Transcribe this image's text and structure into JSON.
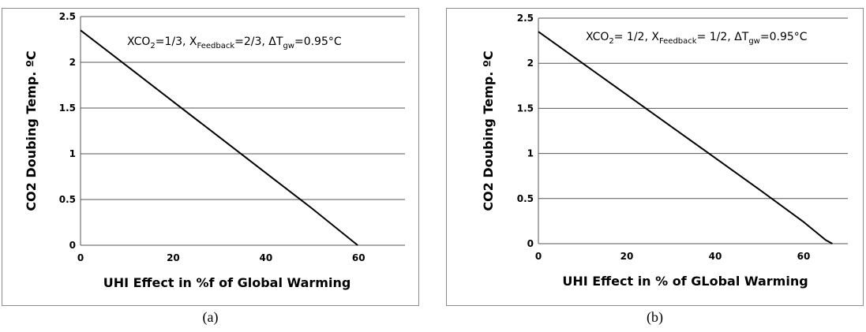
{
  "chart_data": [
    {
      "type": "line",
      "caption": "(a)",
      "annotation": {
        "text1": "XCO",
        "sub1": "2",
        "text2": "=1/3,  X",
        "sub2": "Feedback",
        "text3": "=2/3, ΔT",
        "sub3": "gw",
        "text4": "=0.95°C"
      },
      "xlabel": "UHI Effect in %f of Global Warming",
      "ylabel": "CO2 Doubing Temp. ºC",
      "xlim": [
        0,
        70
      ],
      "ylim": [
        0,
        2.5
      ],
      "xticks": [
        "0",
        "20",
        "40",
        "60"
      ],
      "yticks": [
        "0",
        "0.5",
        "1",
        "1.5",
        "2",
        "2.5"
      ],
      "grid": "horizontal",
      "series": [
        {
          "x": [
            0,
            10,
            20,
            30,
            40,
            50,
            59.8
          ],
          "y": [
            2.35,
            1.96,
            1.57,
            1.18,
            0.79,
            0.4,
            0
          ],
          "color": "#000000"
        }
      ]
    },
    {
      "type": "line",
      "caption": "(b)",
      "annotation": {
        "text1": "XCO",
        "sub1": "2",
        "text2": "= 1/2,  X",
        "sub2": "Feedback",
        "text3": "= 1/2, ΔT",
        "sub3": "gw",
        "text4": "=0.95°C"
      },
      "xlabel": "UHI Effect in % of GLobal Warming",
      "ylabel": "CO2 Doubing  Temp.  ºC",
      "xlim": [
        0,
        70
      ],
      "ylim": [
        0,
        2.5
      ],
      "xticks": [
        "0",
        "20",
        "40",
        "60"
      ],
      "yticks": [
        "0",
        "0.5",
        "1",
        "1.5",
        "2",
        "2.5"
      ],
      "grid": "horizontal",
      "series": [
        {
          "x": [
            0,
            10,
            20,
            30,
            40,
            50,
            60,
            65,
            66.5
          ],
          "y": [
            2.35,
            2.0,
            1.65,
            1.3,
            0.95,
            0.6,
            0.24,
            0.04,
            0
          ],
          "color": "#000000"
        }
      ]
    }
  ]
}
